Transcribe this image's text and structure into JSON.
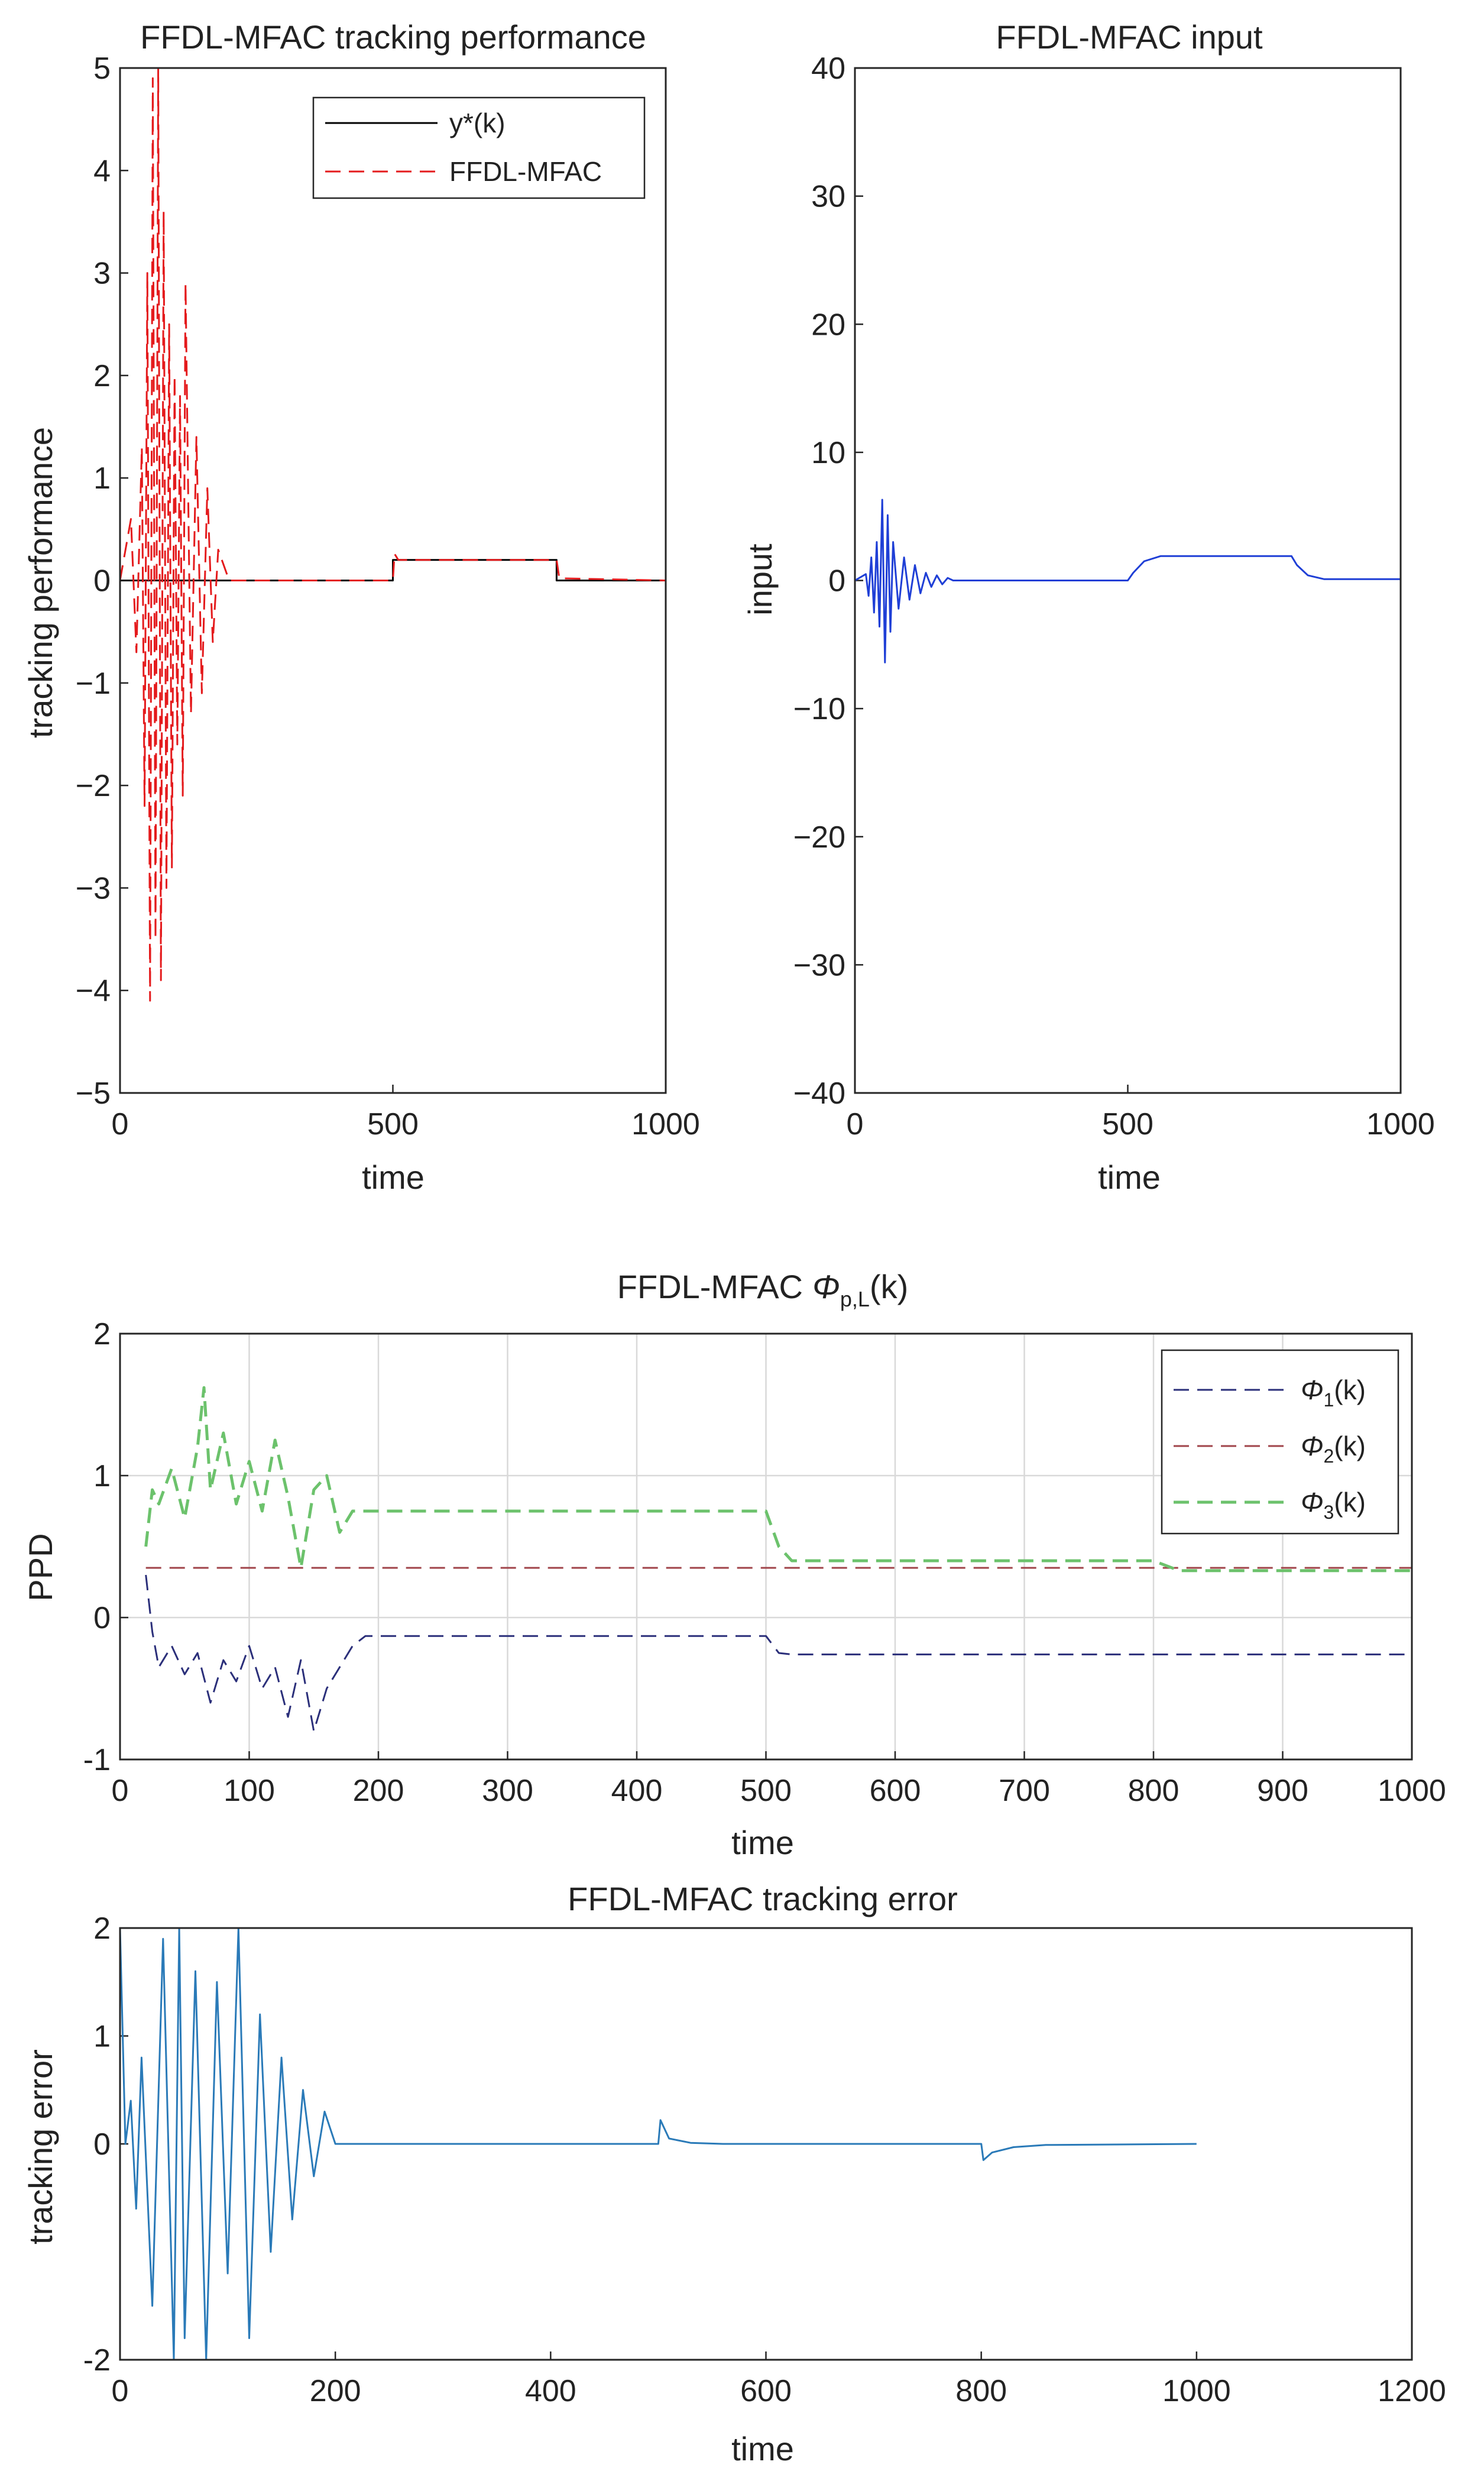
{
  "colors": {
    "reference": "#000000",
    "ffdl": "#e41a1c",
    "input": "#1f3fd6",
    "phi1": "#2b2f7a",
    "phi2": "#a0444a",
    "phi3": "#6cc26c",
    "error": "#2a7ab8"
  },
  "chart_data": [
    {
      "type": "line",
      "title": "FFDL-MFAC tracking performance",
      "xlabel": "time",
      "ylabel": "tracking performance",
      "xlim": [
        0,
        1000
      ],
      "ylim": [
        -5,
        5
      ],
      "xticks": [
        "0",
        "500",
        "1000"
      ],
      "yticks": [
        "5",
        "4",
        "3",
        "2",
        "1",
        "0",
        "−1",
        "−2",
        "−3",
        "−4",
        "−5"
      ],
      "grid": false,
      "legend": "top-right",
      "series": [
        {
          "name": "y*(k)",
          "style": "solid",
          "x": [
            0,
            500,
            500,
            800,
            800,
            1000
          ],
          "y": [
            0,
            0,
            0.2,
            0.2,
            0,
            0
          ]
        },
        {
          "name": "FFDL-MFAC",
          "style": "dashed",
          "x": [
            0,
            20,
            30,
            40,
            45,
            50,
            55,
            60,
            65,
            70,
            75,
            80,
            85,
            90,
            95,
            100,
            105,
            110,
            115,
            120,
            130,
            140,
            150,
            160,
            170,
            180,
            200,
            500,
            503,
            510,
            800,
            805,
            815,
            1000
          ],
          "y": [
            0,
            0.6,
            -0.7,
            1.3,
            -2.2,
            3.0,
            -4.1,
            4.9,
            -3.5,
            5.0,
            -3.9,
            3.6,
            -3.0,
            2.5,
            -2.8,
            2.0,
            -1.6,
            1.8,
            -2.1,
            2.9,
            -1.3,
            1.4,
            -1.1,
            0.9,
            -0.6,
            0.3,
            0,
            0,
            0.26,
            0.2,
            0.2,
            0.02,
            0.02,
            0
          ]
        }
      ]
    },
    {
      "type": "line",
      "title": "FFDL-MFAC input",
      "xlabel": "time",
      "ylabel": "input",
      "xlim": [
        0,
        1000
      ],
      "ylim": [
        -40,
        40
      ],
      "xticks": [
        "0",
        "500",
        "1000"
      ],
      "yticks": [
        "40",
        "30",
        "20",
        "10",
        "0",
        "−10",
        "−20",
        "−30",
        "−40"
      ],
      "grid": false,
      "series": [
        {
          "style": "solid",
          "x": [
            0,
            20,
            25,
            30,
            35,
            40,
            45,
            50,
            55,
            60,
            65,
            70,
            80,
            90,
            100,
            110,
            120,
            130,
            140,
            150,
            160,
            170,
            180,
            200,
            500,
            510,
            530,
            560,
            800,
            810,
            830,
            860,
            1000
          ],
          "y": [
            0,
            0.5,
            -1.2,
            1.8,
            -2.5,
            3.0,
            -3.6,
            6.3,
            -6.4,
            5.1,
            -4.0,
            3.0,
            -2.2,
            1.8,
            -1.5,
            1.2,
            -1.0,
            0.6,
            -0.5,
            0.4,
            -0.3,
            0.2,
            0,
            0,
            0,
            0.6,
            1.5,
            1.9,
            1.9,
            1.2,
            0.4,
            0.1,
            0.1
          ]
        }
      ]
    },
    {
      "type": "line",
      "title": "FFDL-MFAC",
      "title_math": "Φ",
      "title_sub": "p,L",
      "title_tail": "(k)",
      "xlabel": "time",
      "ylabel": "PPD",
      "xlim": [
        0,
        1000
      ],
      "ylim": [
        -1,
        2
      ],
      "xticks": [
        "0",
        "100",
        "200",
        "300",
        "400",
        "500",
        "600",
        "700",
        "800",
        "900",
        "1000"
      ],
      "yticks": [
        "2",
        "1",
        "0",
        "-1"
      ],
      "grid": true,
      "legend": "top-right",
      "series": [
        {
          "name_math": "Φ",
          "name_sub": "1",
          "name_tail": "(k)",
          "style": "dashed",
          "x": [
            20,
            25,
            30,
            40,
            50,
            60,
            70,
            80,
            90,
            100,
            110,
            120,
            130,
            140,
            150,
            160,
            170,
            180,
            190,
            500,
            510,
            520,
            1000
          ],
          "y": [
            0.3,
            -0.1,
            -0.35,
            -0.2,
            -0.4,
            -0.25,
            -0.6,
            -0.3,
            -0.45,
            -0.2,
            -0.5,
            -0.35,
            -0.7,
            -0.3,
            -0.8,
            -0.5,
            -0.35,
            -0.2,
            -0.13,
            -0.13,
            -0.25,
            -0.26,
            -0.26
          ]
        },
        {
          "name_math": "Φ",
          "name_sub": "2",
          "name_tail": "(k)",
          "style": "dashed",
          "x": [
            20,
            1000
          ],
          "y": [
            0.35,
            0.35
          ]
        },
        {
          "name_math": "Φ",
          "name_sub": "3",
          "name_tail": "(k)",
          "style": "dashed",
          "x": [
            20,
            25,
            30,
            40,
            50,
            60,
            65,
            70,
            80,
            90,
            100,
            110,
            120,
            130,
            140,
            150,
            160,
            170,
            180,
            190,
            500,
            510,
            520,
            800,
            820,
            1000
          ],
          "y": [
            0.5,
            0.9,
            0.8,
            1.05,
            0.7,
            1.2,
            1.62,
            0.9,
            1.3,
            0.8,
            1.1,
            0.75,
            1.25,
            0.85,
            0.35,
            0.9,
            1.0,
            0.6,
            0.75,
            0.75,
            0.75,
            0.5,
            0.4,
            0.4,
            0.33,
            0.33
          ]
        }
      ]
    },
    {
      "type": "line",
      "title": "FFDL-MFAC tracking error",
      "xlabel": "time",
      "ylabel": "tracking error",
      "xlim": [
        0,
        1200
      ],
      "ylim": [
        -2,
        2
      ],
      "xticks": [
        "0",
        "200",
        "400",
        "600",
        "800",
        "1000",
        "1200"
      ],
      "yticks": [
        "2",
        "1",
        "0",
        "-2"
      ],
      "grid": false,
      "series": [
        {
          "style": "solid",
          "x": [
            0,
            5,
            10,
            15,
            20,
            30,
            40,
            50,
            55,
            60,
            70,
            80,
            90,
            100,
            110,
            120,
            130,
            140,
            150,
            160,
            170,
            180,
            190,
            200,
            500,
            502,
            510,
            530,
            560,
            800,
            802,
            810,
            830,
            860,
            1000
          ],
          "y": [
            2,
            0,
            0.4,
            -0.6,
            0.8,
            -1.5,
            1.9,
            -2,
            2,
            -1.8,
            1.6,
            -2,
            1.5,
            -1.2,
            2,
            -1.8,
            1.2,
            -1.0,
            0.8,
            -0.7,
            0.5,
            -0.3,
            0.3,
            0,
            0,
            0.22,
            0.05,
            0.01,
            0,
            0,
            -0.15,
            -0.08,
            -0.03,
            -0.01,
            0
          ]
        }
      ]
    }
  ]
}
